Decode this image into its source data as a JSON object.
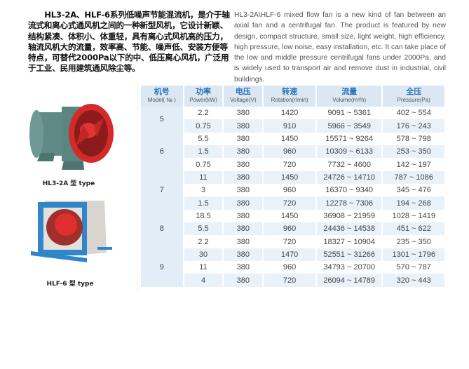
{
  "intro": {
    "cn": "HL3-2A、HLF-6系列低噪声节能混流机，是介于轴 流式和离心式通风机之间的一种新型风机，它设计新颖、结构紧凑、体积小、体重轻，具有离心式风机高的压力，轴流风机大的流量，效率高、节能、噪声低、安装方便等特点，可替代2000Pa以下的中、低压离心风机，广泛用于工业、民用建筑通风除尘等。",
    "en": "HL3-2A\\HLF-6 mixed flow fan is a new kind of fan between an axial fan and a centrifugal fan. The product is featured by new design, compact structure, small size, light weight, high efficiency, high pressure, low noise, easy installation, etc. It can take place of the low and middle pressure centrifugal fans under 2000Pa, and is widely used to transport air and remove dust in industrial, civil buildings."
  },
  "products": [
    {
      "label": "HL3-2A 型 type"
    },
    {
      "label": "HLF-6 型 type"
    }
  ],
  "colors": {
    "header_bg": "#dbe8f4",
    "header_text": "#2a6fb5",
    "row_alt": "#e9f1f9",
    "fan_red": "#d42a2a",
    "housing_green": "#5f8a86",
    "frame_blue": "#2f86c8"
  },
  "table": {
    "headers": [
      {
        "cn": "机号",
        "en": "Model( № )"
      },
      {
        "cn": "功率",
        "en": "Power(kW)"
      },
      {
        "cn": "电压",
        "en": "Voltage(V)"
      },
      {
        "cn": "转速",
        "en": "Rotation(r/min)"
      },
      {
        "cn": "流量",
        "en": "Volume(m³/h)"
      },
      {
        "cn": "全压",
        "en": "Pressure(Pa)"
      }
    ],
    "groups": [
      {
        "model": "5",
        "rows": [
          [
            "2.2",
            "380",
            "1420",
            "9091 ~ 5361",
            "402 ~ 554"
          ],
          [
            "0.75",
            "380",
            "910",
            "5966 ~ 3549",
            "176 ~ 243"
          ]
        ]
      },
      {
        "model": "6",
        "rows": [
          [
            "5.5",
            "380",
            "1450",
            "15571 ~ 9264",
            "578 ~ 798"
          ],
          [
            "1.5",
            "380",
            "960",
            "10309 ~ 6133",
            "253 ~ 350"
          ],
          [
            "0.75",
            "380",
            "720",
            "7732 ~ 4600",
            "142 ~ 197"
          ]
        ]
      },
      {
        "model": "7",
        "rows": [
          [
            "11",
            "380",
            "1450",
            "24726 ~ 14710",
            "787 ~ 1086"
          ],
          [
            "3",
            "380",
            "960",
            "16370 ~ 9340",
            "345 ~ 476"
          ],
          [
            "1.5",
            "380",
            "720",
            "12278 ~ 7306",
            "194 ~ 268"
          ]
        ]
      },
      {
        "model": "8",
        "rows": [
          [
            "18.5",
            "380",
            "1450",
            "36908 ~ 21959",
            "1028 ~ 1419"
          ],
          [
            "5.5",
            "380",
            "960",
            "24436 ~ 14538",
            "451 ~ 622"
          ],
          [
            "2.2",
            "380",
            "720",
            "18327 ~ 10904",
            "235 ~ 350"
          ]
        ]
      },
      {
        "model": "9",
        "rows": [
          [
            "30",
            "380",
            "1470",
            "52551 ~ 31266",
            "1301 ~ 1796"
          ],
          [
            "11",
            "380",
            "960",
            "34793 ~ 20700",
            "570 ~ 787"
          ],
          [
            "4",
            "380",
            "720",
            "26094 ~ 14789",
            "320 ~ 443"
          ]
        ]
      }
    ]
  }
}
